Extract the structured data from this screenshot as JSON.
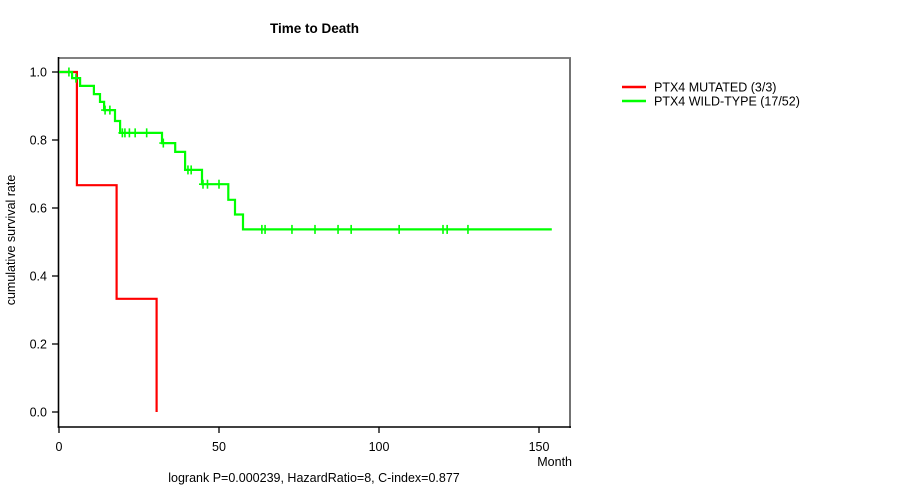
{
  "chart_data": {
    "type": "line",
    "subtype": "kaplan-meier-step",
    "title": "Time to Death",
    "xlabel": "Month",
    "ylabel": "cumulative survival rate",
    "annotation": "logrank P=0.000239, HazardRatio=8, C-index=0.877",
    "xlim": [
      0,
      160
    ],
    "ylim": [
      0,
      1
    ],
    "x_ticks": [
      0,
      50,
      100,
      150
    ],
    "y_ticks": [
      0.0,
      0.2,
      0.4,
      0.6,
      0.8,
      1.0
    ],
    "grid": false,
    "legend_position": "right-outside",
    "series": [
      {
        "id": "ptx4-mutated",
        "name": "PTX4 MUTATED (3/3)",
        "color": "#ff0000",
        "step_points": [
          [
            0,
            1.0
          ],
          [
            5.6,
            1.0
          ],
          [
            5.6,
            0.667
          ],
          [
            18.0,
            0.667
          ],
          [
            18.0,
            0.333
          ],
          [
            30.5,
            0.333
          ],
          [
            30.5,
            0.0
          ]
        ],
        "censor_marks": []
      },
      {
        "id": "ptx4-wild-type",
        "name": "PTX4 WILD-TYPE (17/52)",
        "color": "#00ff00",
        "step_points": [
          [
            0,
            1.0
          ],
          [
            4.1,
            1.0
          ],
          [
            4.1,
            0.982
          ],
          [
            6.6,
            0.982
          ],
          [
            6.6,
            0.959
          ],
          [
            10.9,
            0.959
          ],
          [
            10.9,
            0.935
          ],
          [
            12.8,
            0.935
          ],
          [
            12.8,
            0.912
          ],
          [
            14.1,
            0.912
          ],
          [
            14.1,
            0.888
          ],
          [
            17.5,
            0.888
          ],
          [
            17.5,
            0.856
          ],
          [
            19.1,
            0.856
          ],
          [
            19.1,
            0.821
          ],
          [
            32.2,
            0.821
          ],
          [
            32.2,
            0.791
          ],
          [
            36.3,
            0.791
          ],
          [
            36.3,
            0.765
          ],
          [
            39.4,
            0.765
          ],
          [
            39.4,
            0.712
          ],
          [
            44.7,
            0.712
          ],
          [
            44.7,
            0.67
          ],
          [
            52.9,
            0.67
          ],
          [
            52.9,
            0.624
          ],
          [
            55.0,
            0.624
          ],
          [
            55.0,
            0.581
          ],
          [
            57.5,
            0.581
          ],
          [
            57.5,
            0.537
          ],
          [
            154.0,
            0.537
          ]
        ],
        "censor_marks": [
          [
            3.1,
            1.0
          ],
          [
            5.3,
            0.982
          ],
          [
            14.4,
            0.888
          ],
          [
            15.9,
            0.888
          ],
          [
            19.8,
            0.821
          ],
          [
            20.6,
            0.821
          ],
          [
            22.0,
            0.821
          ],
          [
            23.8,
            0.821
          ],
          [
            27.4,
            0.821
          ],
          [
            32.6,
            0.791
          ],
          [
            40.3,
            0.712
          ],
          [
            41.3,
            0.712
          ],
          [
            45.0,
            0.67
          ],
          [
            46.4,
            0.67
          ],
          [
            50.0,
            0.67
          ],
          [
            63.4,
            0.537
          ],
          [
            64.4,
            0.537
          ],
          [
            72.8,
            0.537
          ],
          [
            80.0,
            0.537
          ],
          [
            87.2,
            0.537
          ],
          [
            91.3,
            0.537
          ],
          [
            106.3,
            0.537
          ],
          [
            120.0,
            0.537
          ],
          [
            121.3,
            0.537
          ],
          [
            127.8,
            0.537
          ]
        ]
      }
    ]
  },
  "colors": {
    "axis": "#000000",
    "frame_top": "#808080",
    "frame_right": "#737373",
    "background": "#ffffff"
  }
}
